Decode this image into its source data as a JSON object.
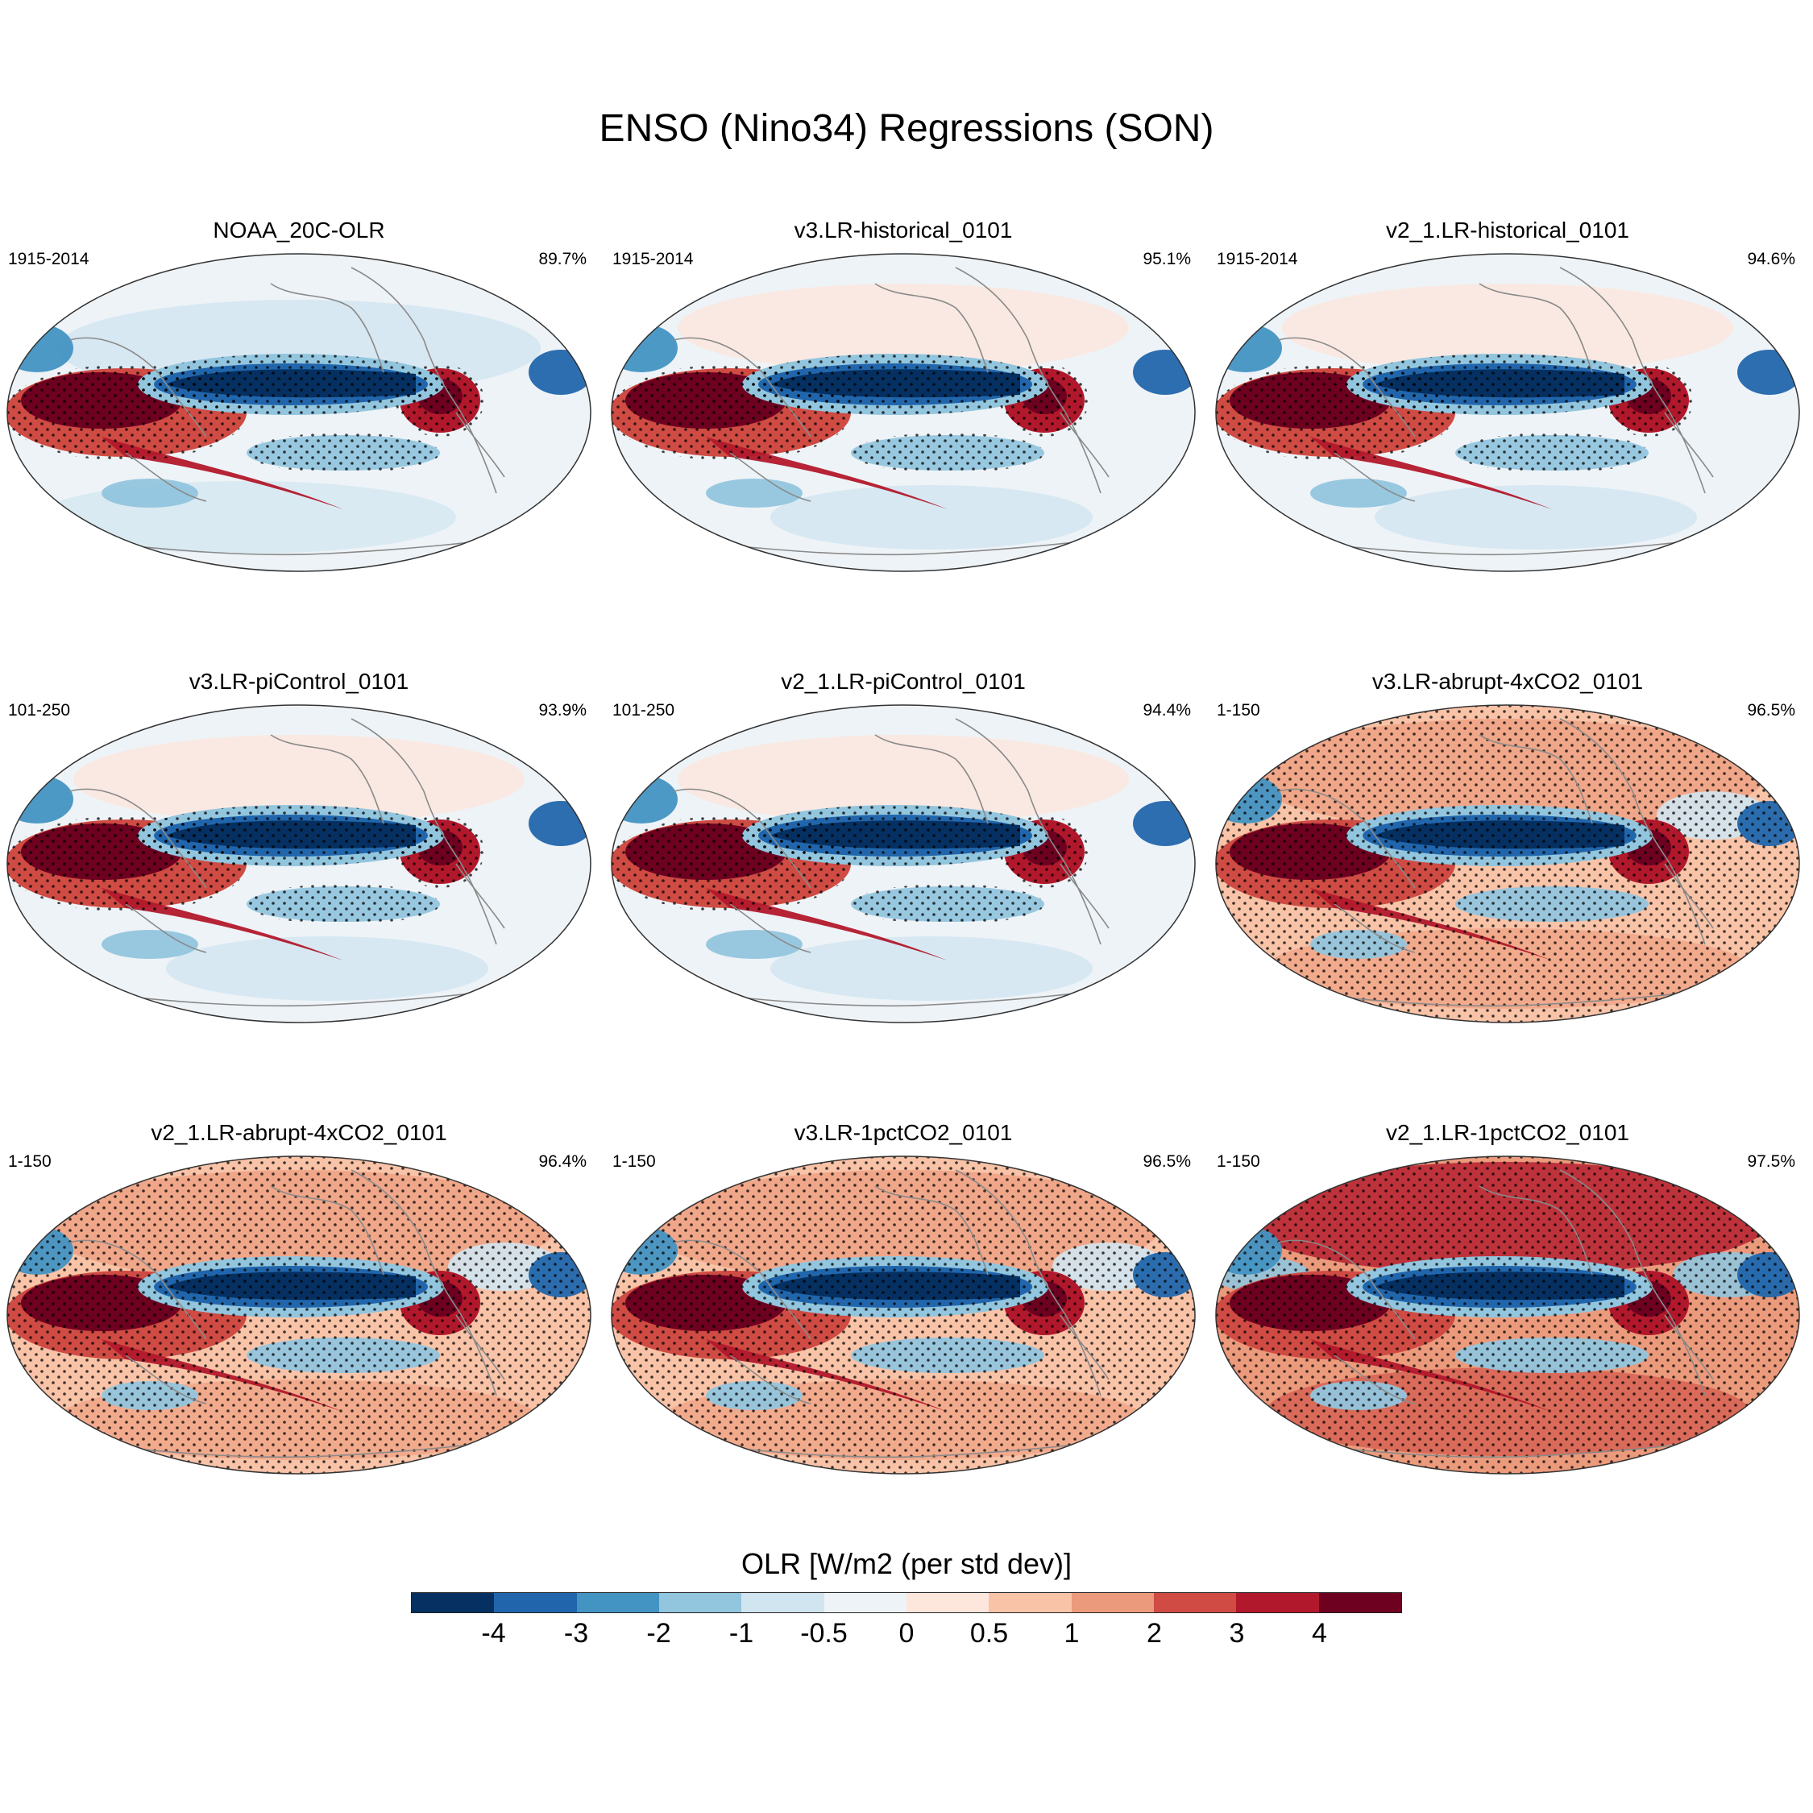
{
  "title": "ENSO (Nino34) Regressions (SON)",
  "panels": [
    {
      "title": "NOAA_20C-OLR",
      "left_label": "1915-2014",
      "right_label": "89.7%",
      "regime": "obs"
    },
    {
      "title": "v3.LR-historical_0101",
      "left_label": "1915-2014",
      "right_label": "95.1%",
      "regime": "model"
    },
    {
      "title": "v2_1.LR-historical_0101",
      "left_label": "1915-2014",
      "right_label": "94.6%",
      "regime": "model"
    },
    {
      "title": "v3.LR-piControl_0101",
      "left_label": "101-250",
      "right_label": "93.9%",
      "regime": "model"
    },
    {
      "title": "v2_1.LR-piControl_0101",
      "left_label": "101-250",
      "right_label": "94.4%",
      "regime": "model"
    },
    {
      "title": "v3.LR-abrupt-4xCO2_0101",
      "left_label": "1-150",
      "right_label": "96.5%",
      "regime": "warm"
    },
    {
      "title": "v2_1.LR-abrupt-4xCO2_0101",
      "left_label": "1-150",
      "right_label": "96.4%",
      "regime": "warm"
    },
    {
      "title": "v3.LR-1pctCO2_0101",
      "left_label": "1-150",
      "right_label": "96.5%",
      "regime": "warm"
    },
    {
      "title": "v2_1.LR-1pctCO2_0101",
      "left_label": "1-150",
      "right_label": "97.5%",
      "regime": "hot"
    }
  ],
  "colorbar": {
    "title": "OLR [W/m2 (per std dev)]",
    "levels": [
      "-4",
      "-3",
      "-2",
      "-1",
      "-0.5",
      "0",
      "0.5",
      "1",
      "2",
      "3",
      "4"
    ],
    "colors": [
      "#053061",
      "#2166ac",
      "#4393c3",
      "#92c5de",
      "#d1e5f0",
      "#eef3f7",
      "#fde6dc",
      "#f9c3a8",
      "#ec9a7c",
      "#cf4b43",
      "#b2182b",
      "#6e0020"
    ]
  },
  "colors": {
    "land_outline": "#8a8a8a",
    "stipple": "#000000"
  }
}
